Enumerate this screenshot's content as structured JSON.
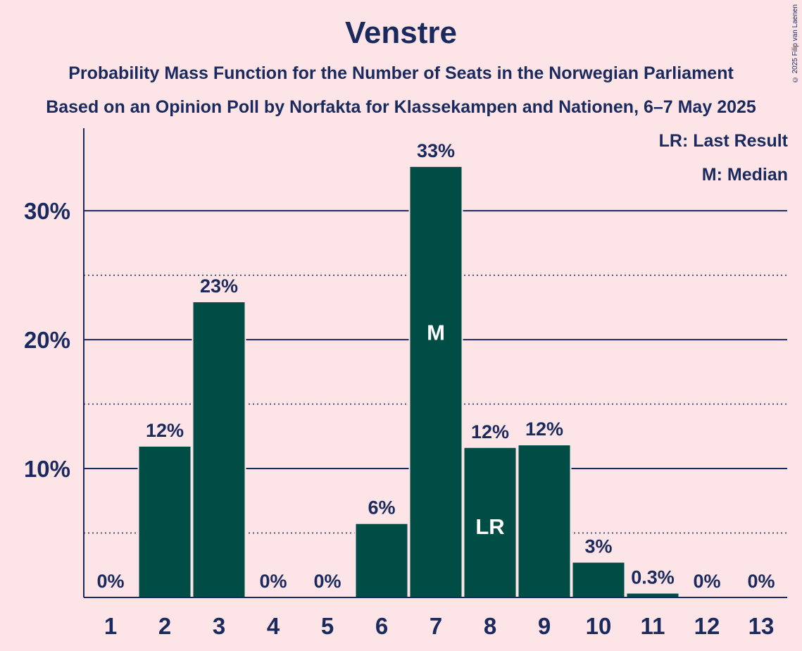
{
  "title": "Venstre",
  "subtitle_1": "Probability Mass Function for the Number of Seats in the Norwegian Parliament",
  "subtitle_2": "Based on an Opinion Poll by Norfakta for Klassekampen and Nationen, 6–7 May 2025",
  "copyright": "© 2025 Filip van Laenen",
  "legend": {
    "last_result": "LR: Last Result",
    "median": "M: Median"
  },
  "colors": {
    "background": "#fde4e6",
    "bar": "#004d45",
    "text": "#1a2a5e"
  },
  "chart_data": {
    "type": "bar",
    "categories": [
      "1",
      "2",
      "3",
      "4",
      "5",
      "6",
      "7",
      "8",
      "9",
      "10",
      "11",
      "12",
      "13"
    ],
    "values": [
      0,
      11.7,
      22.9,
      0,
      0,
      5.7,
      33.4,
      11.6,
      11.8,
      2.7,
      0.3,
      0,
      0
    ],
    "data_labels": [
      "0%",
      "12%",
      "23%",
      "0%",
      "0%",
      "6%",
      "33%",
      "12%",
      "12%",
      "3%",
      "0.3%",
      "0%",
      "0%"
    ],
    "bar_markers": {
      "7": "M",
      "8": "LR"
    },
    "ylim": [
      0,
      36.4
    ],
    "y_ticks": [
      10,
      20,
      30
    ],
    "y_tick_labels": [
      "10%",
      "20%",
      "30%"
    ],
    "y_minor_ticks": [
      5,
      15,
      25
    ],
    "grid": true,
    "legend_position": "top-right"
  }
}
